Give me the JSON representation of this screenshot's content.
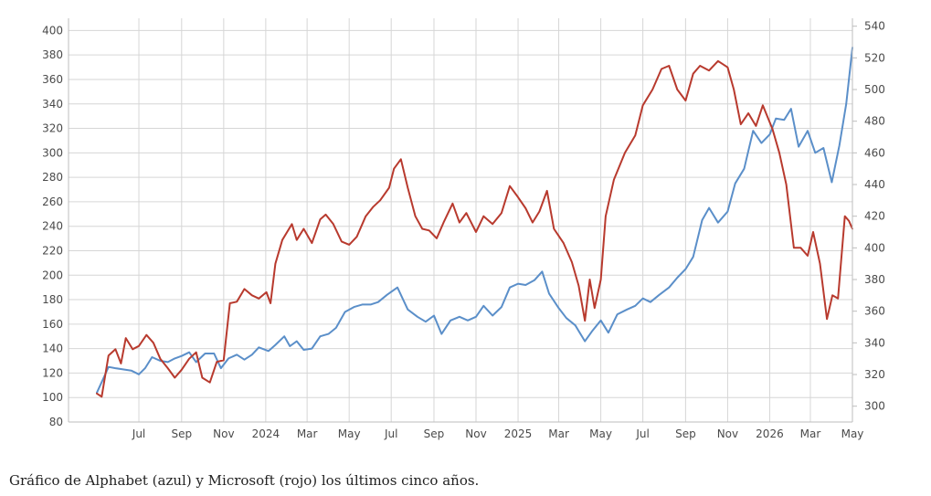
{
  "caption": "Gráfico de Alphabet (azul) y Microsoft (rojo) los últimos cinco años.",
  "chart_data": {
    "type": "line",
    "title": "",
    "xlabel": "",
    "ylabel": "",
    "grid": true,
    "legend": "none",
    "x_range": [
      "2023-05-01",
      "2026-05-01"
    ],
    "x_ticks": [
      {
        "date": "2023-07-01",
        "label": "Jul"
      },
      {
        "date": "2023-09-01",
        "label": "Sep"
      },
      {
        "date": "2023-11-01",
        "label": "Nov"
      },
      {
        "date": "2024-01-01",
        "label": "2024"
      },
      {
        "date": "2024-03-01",
        "label": "Mar"
      },
      {
        "date": "2024-05-01",
        "label": "May"
      },
      {
        "date": "2024-07-01",
        "label": "Jul"
      },
      {
        "date": "2024-09-01",
        "label": "Sep"
      },
      {
        "date": "2024-11-01",
        "label": "Nov"
      },
      {
        "date": "2025-01-01",
        "label": "2025"
      },
      {
        "date": "2025-03-01",
        "label": "Mar"
      },
      {
        "date": "2025-05-01",
        "label": "May"
      },
      {
        "date": "2025-07-01",
        "label": "Jul"
      },
      {
        "date": "2025-09-01",
        "label": "Sep"
      },
      {
        "date": "2025-11-01",
        "label": "Nov"
      },
      {
        "date": "2026-01-01",
        "label": "2026"
      },
      {
        "date": "2026-03-01",
        "label": "Mar"
      },
      {
        "date": "2026-05-01",
        "label": "May"
      }
    ],
    "y_left": {
      "range": [
        80,
        410
      ],
      "ticks": [
        80,
        100,
        120,
        140,
        160,
        180,
        200,
        220,
        240,
        260,
        280,
        300,
        320,
        340,
        360,
        380,
        400
      ]
    },
    "y_right": {
      "range": [
        290,
        545
      ],
      "ticks": [
        300,
        320,
        340,
        360,
        380,
        400,
        420,
        440,
        460,
        480,
        500,
        520,
        540
      ]
    },
    "series": [
      {
        "color": "#5b8fc9",
        "axis": "left",
        "points": [
          [
            "2023-05-01",
            104
          ],
          [
            "2023-05-10",
            115
          ],
          [
            "2023-05-18",
            125
          ],
          [
            "2023-05-28",
            124
          ],
          [
            "2023-06-08",
            123
          ],
          [
            "2023-06-20",
            122
          ],
          [
            "2023-07-01",
            119
          ],
          [
            "2023-07-10",
            124
          ],
          [
            "2023-07-20",
            133
          ],
          [
            "2023-08-01",
            130
          ],
          [
            "2023-08-12",
            129
          ],
          [
            "2023-08-22",
            132
          ],
          [
            "2023-09-01",
            134
          ],
          [
            "2023-09-12",
            137
          ],
          [
            "2023-09-22",
            129
          ],
          [
            "2023-10-05",
            136
          ],
          [
            "2023-10-18",
            136
          ],
          [
            "2023-10-28",
            124
          ],
          [
            "2023-11-08",
            132
          ],
          [
            "2023-11-20",
            135
          ],
          [
            "2023-12-01",
            131
          ],
          [
            "2023-12-12",
            135
          ],
          [
            "2023-12-22",
            141
          ],
          [
            "2024-01-05",
            138
          ],
          [
            "2024-01-15",
            143
          ],
          [
            "2024-01-28",
            150
          ],
          [
            "2024-02-05",
            142
          ],
          [
            "2024-02-15",
            146
          ],
          [
            "2024-02-25",
            139
          ],
          [
            "2024-03-08",
            140
          ],
          [
            "2024-03-20",
            150
          ],
          [
            "2024-04-01",
            152
          ],
          [
            "2024-04-12",
            157
          ],
          [
            "2024-04-25",
            170
          ],
          [
            "2024-05-08",
            174
          ],
          [
            "2024-05-20",
            176
          ],
          [
            "2024-06-01",
            176
          ],
          [
            "2024-06-12",
            178
          ],
          [
            "2024-06-25",
            184
          ],
          [
            "2024-07-10",
            190
          ],
          [
            "2024-07-25",
            172
          ],
          [
            "2024-08-08",
            166
          ],
          [
            "2024-08-20",
            162
          ],
          [
            "2024-09-01",
            167
          ],
          [
            "2024-09-12",
            152
          ],
          [
            "2024-09-25",
            163
          ],
          [
            "2024-10-08",
            166
          ],
          [
            "2024-10-20",
            163
          ],
          [
            "2024-11-01",
            166
          ],
          [
            "2024-11-12",
            175
          ],
          [
            "2024-11-25",
            167
          ],
          [
            "2024-12-08",
            174
          ],
          [
            "2024-12-20",
            190
          ],
          [
            "2025-01-01",
            193
          ],
          [
            "2025-01-12",
            192
          ],
          [
            "2025-01-25",
            196
          ],
          [
            "2025-02-05",
            203
          ],
          [
            "2025-02-15",
            185
          ],
          [
            "2025-03-01",
            173
          ],
          [
            "2025-03-12",
            165
          ],
          [
            "2025-03-25",
            159
          ],
          [
            "2025-04-08",
            146
          ],
          [
            "2025-04-18",
            154
          ],
          [
            "2025-05-01",
            163
          ],
          [
            "2025-05-12",
            153
          ],
          [
            "2025-05-25",
            168
          ],
          [
            "2025-06-08",
            172
          ],
          [
            "2025-06-20",
            175
          ],
          [
            "2025-07-01",
            181
          ],
          [
            "2025-07-12",
            178
          ],
          [
            "2025-07-25",
            184
          ],
          [
            "2025-08-08",
            190
          ],
          [
            "2025-08-20",
            198
          ],
          [
            "2025-09-01",
            205
          ],
          [
            "2025-09-12",
            215
          ],
          [
            "2025-09-25",
            245
          ],
          [
            "2025-10-05",
            255
          ],
          [
            "2025-10-18",
            243
          ],
          [
            "2025-11-01",
            252
          ],
          [
            "2025-11-12",
            275
          ],
          [
            "2025-11-25",
            287
          ],
          [
            "2025-12-08",
            318
          ],
          [
            "2025-12-20",
            308
          ],
          [
            "2026-01-01",
            315
          ],
          [
            "2026-01-10",
            328
          ],
          [
            "2026-01-22",
            327
          ],
          [
            "2026-02-01",
            336
          ],
          [
            "2026-02-12",
            305
          ],
          [
            "2026-02-25",
            318
          ],
          [
            "2026-03-08",
            300
          ],
          [
            "2026-03-20",
            304
          ],
          [
            "2026-04-01",
            276
          ],
          [
            "2026-04-12",
            306
          ],
          [
            "2026-04-22",
            340
          ],
          [
            "2026-05-01",
            386
          ]
        ]
      },
      {
        "color": "#b83a2e",
        "axis": "right",
        "points": [
          [
            "2023-05-01",
            308
          ],
          [
            "2023-05-08",
            306
          ],
          [
            "2023-05-18",
            332
          ],
          [
            "2023-05-28",
            336
          ],
          [
            "2023-06-05",
            327
          ],
          [
            "2023-06-12",
            343
          ],
          [
            "2023-06-22",
            336
          ],
          [
            "2023-07-01",
            338
          ],
          [
            "2023-07-12",
            345
          ],
          [
            "2023-07-22",
            340
          ],
          [
            "2023-08-01",
            330
          ],
          [
            "2023-08-12",
            324
          ],
          [
            "2023-08-22",
            318
          ],
          [
            "2023-09-01",
            323
          ],
          [
            "2023-09-12",
            330
          ],
          [
            "2023-09-22",
            334
          ],
          [
            "2023-10-01",
            318
          ],
          [
            "2023-10-12",
            315
          ],
          [
            "2023-10-22",
            328
          ],
          [
            "2023-11-01",
            329
          ],
          [
            "2023-11-10",
            365
          ],
          [
            "2023-11-20",
            366
          ],
          [
            "2023-12-01",
            374
          ],
          [
            "2023-12-12",
            370
          ],
          [
            "2023-12-22",
            368
          ],
          [
            "2024-01-02",
            372
          ],
          [
            "2024-01-08",
            365
          ],
          [
            "2024-01-15",
            390
          ],
          [
            "2024-01-25",
            405
          ],
          [
            "2024-02-08",
            415
          ],
          [
            "2024-02-15",
            405
          ],
          [
            "2024-02-25",
            412
          ],
          [
            "2024-03-08",
            403
          ],
          [
            "2024-03-20",
            418
          ],
          [
            "2024-03-28",
            421
          ],
          [
            "2024-04-08",
            415
          ],
          [
            "2024-04-20",
            404
          ],
          [
            "2024-05-01",
            402
          ],
          [
            "2024-05-12",
            407
          ],
          [
            "2024-05-25",
            420
          ],
          [
            "2024-06-05",
            426
          ],
          [
            "2024-06-15",
            430
          ],
          [
            "2024-06-28",
            438
          ],
          [
            "2024-07-05",
            450
          ],
          [
            "2024-07-15",
            456
          ],
          [
            "2024-07-25",
            438
          ],
          [
            "2024-08-05",
            420
          ],
          [
            "2024-08-15",
            412
          ],
          [
            "2024-08-25",
            411
          ],
          [
            "2024-09-05",
            406
          ],
          [
            "2024-09-15",
            416
          ],
          [
            "2024-09-28",
            428
          ],
          [
            "2024-10-08",
            416
          ],
          [
            "2024-10-18",
            422
          ],
          [
            "2024-11-01",
            410
          ],
          [
            "2024-11-12",
            420
          ],
          [
            "2024-11-25",
            415
          ],
          [
            "2024-12-08",
            422
          ],
          [
            "2024-12-20",
            439
          ],
          [
            "2025-01-01",
            432
          ],
          [
            "2025-01-12",
            425
          ],
          [
            "2025-01-22",
            416
          ],
          [
            "2025-02-01",
            423
          ],
          [
            "2025-02-12",
            436
          ],
          [
            "2025-02-22",
            412
          ],
          [
            "2025-03-08",
            403
          ],
          [
            "2025-03-20",
            391
          ],
          [
            "2025-03-30",
            376
          ],
          [
            "2025-04-08",
            354
          ],
          [
            "2025-04-15",
            380
          ],
          [
            "2025-04-22",
            362
          ],
          [
            "2025-05-01",
            380
          ],
          [
            "2025-05-08",
            420
          ],
          [
            "2025-05-20",
            443
          ],
          [
            "2025-06-05",
            460
          ],
          [
            "2025-06-20",
            471
          ],
          [
            "2025-07-01",
            490
          ],
          [
            "2025-07-15",
            500
          ],
          [
            "2025-07-28",
            513
          ],
          [
            "2025-08-08",
            515
          ],
          [
            "2025-08-20",
            500
          ],
          [
            "2025-09-01",
            493
          ],
          [
            "2025-09-12",
            510
          ],
          [
            "2025-09-22",
            515
          ],
          [
            "2025-10-05",
            512
          ],
          [
            "2025-10-18",
            518
          ],
          [
            "2025-11-01",
            514
          ],
          [
            "2025-11-10",
            500
          ],
          [
            "2025-11-20",
            478
          ],
          [
            "2025-12-01",
            485
          ],
          [
            "2025-12-12",
            477
          ],
          [
            "2025-12-22",
            490
          ],
          [
            "2026-01-05",
            475
          ],
          [
            "2026-01-15",
            460
          ],
          [
            "2026-01-25",
            440
          ],
          [
            "2026-02-05",
            400
          ],
          [
            "2026-02-15",
            400
          ],
          [
            "2026-02-25",
            395
          ],
          [
            "2026-03-05",
            410
          ],
          [
            "2026-03-15",
            390
          ],
          [
            "2026-03-25",
            355
          ],
          [
            "2026-04-02",
            370
          ],
          [
            "2026-04-10",
            368
          ],
          [
            "2026-04-20",
            420
          ],
          [
            "2026-04-26",
            417
          ],
          [
            "2026-05-01",
            412
          ]
        ]
      }
    ]
  }
}
